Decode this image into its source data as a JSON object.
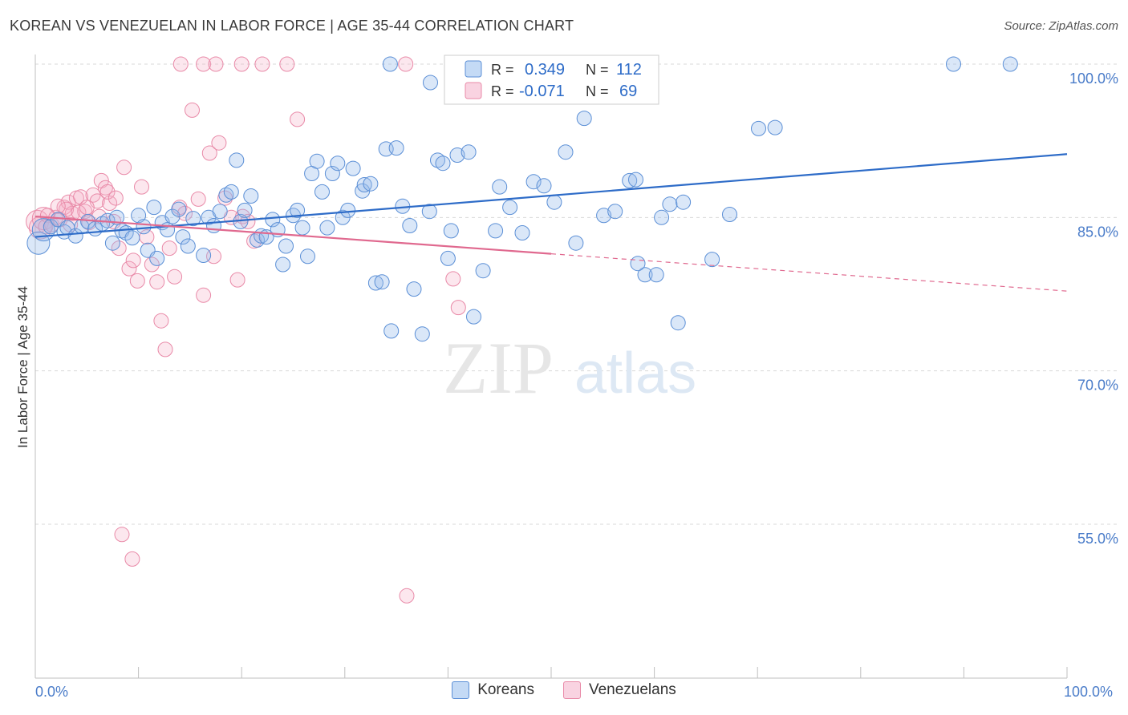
{
  "header": {
    "title": "KOREAN VS VENEZUELAN IN LABOR FORCE | AGE 35-44 CORRELATION CHART",
    "source": "Source: ZipAtlas.com"
  },
  "colors": {
    "korean": "#5b8fd6",
    "korean_fill": "rgba(148,187,236,0.35)",
    "korean_line": "#2e6cc8",
    "venezuelan": "#e98aa8",
    "venezuelan_fill": "rgba(244,175,200,0.30)",
    "venezuelan_line": "#e0698f",
    "grid": "#d9d9d9"
  },
  "legend": {
    "r_label": "R =",
    "n_label": "N =",
    "rows": [
      {
        "r": "0.349",
        "n": "112"
      },
      {
        "r": "-0.071",
        "n": "69"
      }
    ]
  },
  "bottom_legend": [
    {
      "label": "Koreans"
    },
    {
      "label": "Venezuelans"
    }
  ],
  "watermark": {
    "zip": "ZIP",
    "atlas": "atlas"
  },
  "chart_data": {
    "type": "scatter",
    "title": "KOREAN VS VENEZUELAN IN LABOR FORCE | AGE 35-44 CORRELATION CHART",
    "xlabel": "",
    "ylabel": "In Labor Force | Age 35-44",
    "xlim": [
      0,
      100
    ],
    "ylim": [
      42,
      100
    ],
    "x_ticks": [
      "0.0%",
      "100.0%"
    ],
    "y_ticks": [
      {
        "value": 100,
        "label": "100.0%"
      },
      {
        "value": 85,
        "label": "85.0%"
      },
      {
        "value": 70,
        "label": "70.0%"
      },
      {
        "value": 55,
        "label": "55.0%"
      }
    ],
    "grid": true,
    "series": [
      {
        "name": "Koreans",
        "r": 0.349,
        "n": 112,
        "trend": {
          "x0": 0,
          "y0": 83.1,
          "x1": 100,
          "y1": 91.2,
          "solid_until": 100
        },
        "points": [
          [
            0.3,
            82.5
          ],
          [
            0.8,
            83.8
          ],
          [
            1.5,
            84.1
          ],
          [
            2.2,
            84.8
          ],
          [
            2.8,
            83.6
          ],
          [
            3.1,
            84.0
          ],
          [
            3.9,
            83.2
          ],
          [
            4.5,
            84.1
          ],
          [
            5.1,
            84.6
          ],
          [
            5.8,
            83.9
          ],
          [
            6.5,
            84.4
          ],
          [
            7.0,
            84.7
          ],
          [
            7.5,
            82.5
          ],
          [
            7.9,
            85.0
          ],
          [
            8.4,
            83.7
          ],
          [
            8.8,
            83.5
          ],
          [
            9.4,
            83.0
          ],
          [
            10.0,
            85.2
          ],
          [
            10.5,
            84.1
          ],
          [
            10.9,
            81.8
          ],
          [
            11.5,
            86.0
          ],
          [
            11.8,
            81.0
          ],
          [
            12.3,
            84.5
          ],
          [
            12.8,
            83.8
          ],
          [
            13.3,
            85.1
          ],
          [
            13.9,
            85.8
          ],
          [
            14.3,
            83.1
          ],
          [
            14.8,
            82.2
          ],
          [
            15.3,
            84.9
          ],
          [
            16.3,
            81.3
          ],
          [
            16.8,
            85.0
          ],
          [
            17.3,
            84.2
          ],
          [
            17.9,
            85.6
          ],
          [
            18.5,
            87.2
          ],
          [
            19.0,
            87.5
          ],
          [
            19.5,
            90.6
          ],
          [
            19.9,
            84.6
          ],
          [
            20.3,
            85.7
          ],
          [
            20.9,
            87.1
          ],
          [
            21.5,
            82.8
          ],
          [
            21.9,
            83.2
          ],
          [
            22.4,
            83.1
          ],
          [
            23.0,
            84.8
          ],
          [
            23.5,
            83.8
          ],
          [
            24.0,
            80.4
          ],
          [
            24.3,
            82.2
          ],
          [
            25.0,
            85.2
          ],
          [
            25.4,
            85.7
          ],
          [
            25.9,
            84.0
          ],
          [
            26.4,
            81.2
          ],
          [
            26.8,
            89.3
          ],
          [
            27.3,
            90.5
          ],
          [
            27.8,
            87.5
          ],
          [
            28.3,
            84.0
          ],
          [
            28.8,
            89.3
          ],
          [
            29.3,
            90.3
          ],
          [
            29.8,
            85.0
          ],
          [
            30.3,
            85.7
          ],
          [
            30.8,
            89.8
          ],
          [
            31.7,
            87.6
          ],
          [
            31.9,
            88.2
          ],
          [
            32.5,
            88.3
          ],
          [
            33.0,
            78.6
          ],
          [
            33.6,
            78.7
          ],
          [
            34.0,
            91.7
          ],
          [
            34.5,
            73.9
          ],
          [
            35.0,
            91.8
          ],
          [
            35.6,
            86.1
          ],
          [
            36.3,
            84.2
          ],
          [
            36.7,
            78.0
          ],
          [
            37.5,
            73.6
          ],
          [
            38.2,
            85.6
          ],
          [
            39.0,
            90.6
          ],
          [
            39.5,
            90.3
          ],
          [
            40.3,
            83.7
          ],
          [
            40.9,
            91.1
          ],
          [
            42.0,
            91.4
          ],
          [
            42.5,
            75.3
          ],
          [
            43.4,
            79.8
          ],
          [
            44.6,
            83.7
          ],
          [
            45.0,
            88.0
          ],
          [
            46.0,
            86.0
          ],
          [
            47.2,
            83.5
          ],
          [
            48.3,
            88.5
          ],
          [
            49.3,
            88.1
          ],
          [
            50.3,
            86.5
          ],
          [
            51.4,
            91.4
          ],
          [
            52.4,
            82.5
          ],
          [
            53.2,
            94.7
          ],
          [
            55.1,
            85.2
          ],
          [
            56.2,
            85.6
          ],
          [
            57.6,
            88.6
          ],
          [
            58.2,
            88.7
          ],
          [
            59.1,
            79.4
          ],
          [
            60.2,
            79.4
          ],
          [
            61.5,
            86.3
          ],
          [
            62.3,
            74.7
          ],
          [
            65.6,
            80.9
          ],
          [
            67.3,
            85.3
          ],
          [
            70.1,
            93.7
          ],
          [
            71.7,
            93.8
          ],
          [
            34.4,
            100
          ],
          [
            38.3,
            98.2
          ],
          [
            55.5,
            98.8
          ],
          [
            89.0,
            100
          ],
          [
            94.5,
            100
          ],
          [
            45.3,
            100
          ],
          [
            48.0,
            100
          ],
          [
            40.0,
            81.0
          ],
          [
            60.7,
            85.0
          ],
          [
            62.8,
            86.5
          ],
          [
            58.4,
            80.5
          ]
        ]
      },
      {
        "name": "Venezuelans",
        "r": -0.071,
        "n": 69,
        "trend": {
          "x0": 0,
          "y0": 85.1,
          "x1": 100,
          "y1": 77.8,
          "solid_until": 50
        },
        "points": [
          [
            0.2,
            84.6
          ],
          [
            0.5,
            84.0
          ],
          [
            0.8,
            84.9
          ],
          [
            1.2,
            85.2
          ],
          [
            1.6,
            84.3
          ],
          [
            2.0,
            85.0
          ],
          [
            2.4,
            84.8
          ],
          [
            2.8,
            86.0
          ],
          [
            3.2,
            86.5
          ],
          [
            3.6,
            85.4
          ],
          [
            4.0,
            86.9
          ],
          [
            4.4,
            87.0
          ],
          [
            4.8,
            85.6
          ],
          [
            5.2,
            84.5
          ],
          [
            5.6,
            87.2
          ],
          [
            6.0,
            86.6
          ],
          [
            6.4,
            88.6
          ],
          [
            6.8,
            87.9
          ],
          [
            7.2,
            86.4
          ],
          [
            7.6,
            84.6
          ],
          [
            8.1,
            82.0
          ],
          [
            8.6,
            89.9
          ],
          [
            9.1,
            80.0
          ],
          [
            9.5,
            80.8
          ],
          [
            9.9,
            78.8
          ],
          [
            10.3,
            88.0
          ],
          [
            10.8,
            83.1
          ],
          [
            11.3,
            80.4
          ],
          [
            11.8,
            78.7
          ],
          [
            12.2,
            74.9
          ],
          [
            12.6,
            72.1
          ],
          [
            13.0,
            82.0
          ],
          [
            13.5,
            79.2
          ],
          [
            14.0,
            86.0
          ],
          [
            14.5,
            85.4
          ],
          [
            15.2,
            95.5
          ],
          [
            15.8,
            86.8
          ],
          [
            16.3,
            77.4
          ],
          [
            16.9,
            91.3
          ],
          [
            17.3,
            81.2
          ],
          [
            17.8,
            92.3
          ],
          [
            18.4,
            86.9
          ],
          [
            19.0,
            85.0
          ],
          [
            19.6,
            78.9
          ],
          [
            20.1,
            85.1
          ],
          [
            20.6,
            84.6
          ],
          [
            21.2,
            82.7
          ],
          [
            14.1,
            100
          ],
          [
            16.3,
            100
          ],
          [
            17.5,
            100
          ],
          [
            20.0,
            100
          ],
          [
            22.0,
            100
          ],
          [
            24.4,
            100
          ],
          [
            25.4,
            94.6
          ],
          [
            35.9,
            100
          ],
          [
            36.0,
            48.0
          ],
          [
            40.5,
            79.0
          ],
          [
            41.0,
            76.2
          ],
          [
            8.4,
            54.0
          ],
          [
            9.4,
            51.6
          ],
          [
            3.0,
            85.8
          ],
          [
            1.0,
            84.1
          ],
          [
            2.2,
            86.1
          ],
          [
            4.2,
            85.5
          ],
          [
            5.0,
            86.0
          ],
          [
            6.2,
            85.1
          ],
          [
            7.0,
            87.5
          ],
          [
            7.8,
            86.9
          ],
          [
            3.4,
            84.3
          ]
        ]
      }
    ]
  }
}
